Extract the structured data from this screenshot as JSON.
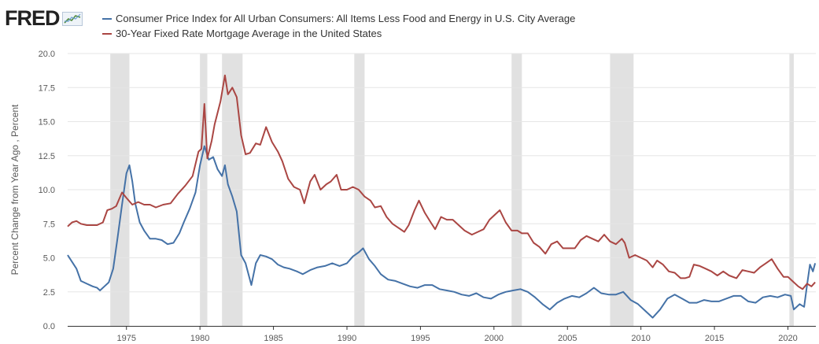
{
  "brand": {
    "logo_text": "FRED"
  },
  "colors": {
    "cpi": "#4572a7",
    "mortgage": "#aa4643",
    "recession": "#e1e1e1",
    "grid": "#e6e6e6"
  },
  "chart_data": {
    "type": "line",
    "title": "",
    "xlabel": "",
    "ylabel": "Percent Change from Year Ago , Percent",
    "xlim": [
      1971.0,
      2021.9
    ],
    "ylim": [
      0,
      20
    ],
    "grid": true,
    "legend": "top-left",
    "yticks": [
      "0.0",
      "2.5",
      "5.0",
      "7.5",
      "10.0",
      "12.5",
      "15.0",
      "17.5",
      "20.0"
    ],
    "xticks": [
      "1975",
      "1980",
      "1985",
      "1990",
      "1995",
      "2000",
      "2005",
      "2010",
      "2015",
      "2020"
    ],
    "recessions": [
      [
        1973.9,
        1975.2
      ],
      [
        1980.0,
        1980.5
      ],
      [
        1981.5,
        1982.9
      ],
      [
        1990.5,
        1991.2
      ],
      [
        2001.2,
        2001.9
      ],
      [
        2007.9,
        2009.5
      ],
      [
        2020.1,
        2020.4
      ]
    ],
    "series": [
      {
        "name": "Consumer Price Index for All Urban Consumers: All Items Less Food and Energy in U.S. City Average",
        "points": [
          [
            1971.0,
            5.2
          ],
          [
            1971.3,
            4.7
          ],
          [
            1971.6,
            4.2
          ],
          [
            1971.9,
            3.3
          ],
          [
            1972.3,
            3.1
          ],
          [
            1972.7,
            2.9
          ],
          [
            1973.0,
            2.8
          ],
          [
            1973.2,
            2.6
          ],
          [
            1973.5,
            2.9
          ],
          [
            1973.8,
            3.2
          ],
          [
            1974.1,
            4.2
          ],
          [
            1974.4,
            6.5
          ],
          [
            1974.7,
            8.9
          ],
          [
            1975.0,
            11.2
          ],
          [
            1975.2,
            11.8
          ],
          [
            1975.4,
            10.6
          ],
          [
            1975.6,
            9.0
          ],
          [
            1975.9,
            7.6
          ],
          [
            1976.2,
            7.0
          ],
          [
            1976.6,
            6.4
          ],
          [
            1977.0,
            6.4
          ],
          [
            1977.4,
            6.3
          ],
          [
            1977.8,
            6.0
          ],
          [
            1978.2,
            6.1
          ],
          [
            1978.6,
            6.8
          ],
          [
            1978.9,
            7.6
          ],
          [
            1979.3,
            8.6
          ],
          [
            1979.7,
            9.8
          ],
          [
            1980.0,
            11.8
          ],
          [
            1980.3,
            13.2
          ],
          [
            1980.6,
            12.2
          ],
          [
            1980.9,
            12.4
          ],
          [
            1981.2,
            11.5
          ],
          [
            1981.5,
            11.0
          ],
          [
            1981.7,
            11.8
          ],
          [
            1981.9,
            10.4
          ],
          [
            1982.2,
            9.5
          ],
          [
            1982.5,
            8.4
          ],
          [
            1982.8,
            5.2
          ],
          [
            1983.1,
            4.6
          ],
          [
            1983.5,
            3.0
          ],
          [
            1983.8,
            4.6
          ],
          [
            1984.1,
            5.2
          ],
          [
            1984.5,
            5.1
          ],
          [
            1984.9,
            4.9
          ],
          [
            1985.3,
            4.5
          ],
          [
            1985.7,
            4.3
          ],
          [
            1986.1,
            4.2
          ],
          [
            1986.6,
            4.0
          ],
          [
            1987.0,
            3.8
          ],
          [
            1987.5,
            4.1
          ],
          [
            1988.0,
            4.3
          ],
          [
            1988.5,
            4.4
          ],
          [
            1989.0,
            4.6
          ],
          [
            1989.5,
            4.4
          ],
          [
            1990.0,
            4.6
          ],
          [
            1990.4,
            5.1
          ],
          [
            1990.8,
            5.4
          ],
          [
            1991.1,
            5.7
          ],
          [
            1991.5,
            4.9
          ],
          [
            1991.9,
            4.4
          ],
          [
            1992.3,
            3.8
          ],
          [
            1992.8,
            3.4
          ],
          [
            1993.3,
            3.3
          ],
          [
            1993.8,
            3.1
          ],
          [
            1994.3,
            2.9
          ],
          [
            1994.8,
            2.8
          ],
          [
            1995.3,
            3.0
          ],
          [
            1995.8,
            3.0
          ],
          [
            1996.3,
            2.7
          ],
          [
            1996.8,
            2.6
          ],
          [
            1997.3,
            2.5
          ],
          [
            1997.8,
            2.3
          ],
          [
            1998.3,
            2.2
          ],
          [
            1998.8,
            2.4
          ],
          [
            1999.3,
            2.1
          ],
          [
            1999.8,
            2.0
          ],
          [
            2000.3,
            2.3
          ],
          [
            2000.8,
            2.5
          ],
          [
            2001.3,
            2.6
          ],
          [
            2001.8,
            2.7
          ],
          [
            2002.3,
            2.5
          ],
          [
            2002.8,
            2.1
          ],
          [
            2003.3,
            1.6
          ],
          [
            2003.8,
            1.2
          ],
          [
            2004.3,
            1.7
          ],
          [
            2004.8,
            2.0
          ],
          [
            2005.3,
            2.2
          ],
          [
            2005.8,
            2.1
          ],
          [
            2006.3,
            2.4
          ],
          [
            2006.8,
            2.8
          ],
          [
            2007.3,
            2.4
          ],
          [
            2007.8,
            2.3
          ],
          [
            2008.3,
            2.3
          ],
          [
            2008.8,
            2.5
          ],
          [
            2009.3,
            1.9
          ],
          [
            2009.8,
            1.6
          ],
          [
            2010.3,
            1.1
          ],
          [
            2010.8,
            0.6
          ],
          [
            2011.3,
            1.2
          ],
          [
            2011.8,
            2.0
          ],
          [
            2012.3,
            2.3
          ],
          [
            2012.8,
            2.0
          ],
          [
            2013.3,
            1.7
          ],
          [
            2013.8,
            1.7
          ],
          [
            2014.3,
            1.9
          ],
          [
            2014.8,
            1.8
          ],
          [
            2015.3,
            1.8
          ],
          [
            2015.8,
            2.0
          ],
          [
            2016.3,
            2.2
          ],
          [
            2016.8,
            2.2
          ],
          [
            2017.3,
            1.8
          ],
          [
            2017.8,
            1.7
          ],
          [
            2018.3,
            2.1
          ],
          [
            2018.8,
            2.2
          ],
          [
            2019.3,
            2.1
          ],
          [
            2019.8,
            2.3
          ],
          [
            2020.2,
            2.2
          ],
          [
            2020.4,
            1.2
          ],
          [
            2020.8,
            1.6
          ],
          [
            2021.1,
            1.4
          ],
          [
            2021.3,
            3.0
          ],
          [
            2021.5,
            4.5
          ],
          [
            2021.7,
            4.0
          ],
          [
            2021.85,
            4.6
          ]
        ]
      },
      {
        "name": "30-Year Fixed Rate Mortgage Average in the United States",
        "points": [
          [
            1971.0,
            7.3
          ],
          [
            1971.3,
            7.6
          ],
          [
            1971.6,
            7.7
          ],
          [
            1971.9,
            7.5
          ],
          [
            1972.3,
            7.4
          ],
          [
            1972.7,
            7.4
          ],
          [
            1973.0,
            7.4
          ],
          [
            1973.4,
            7.6
          ],
          [
            1973.7,
            8.5
          ],
          [
            1974.0,
            8.6
          ],
          [
            1974.3,
            8.8
          ],
          [
            1974.7,
            9.8
          ],
          [
            1975.0,
            9.4
          ],
          [
            1975.4,
            8.9
          ],
          [
            1975.8,
            9.1
          ],
          [
            1976.2,
            8.9
          ],
          [
            1976.6,
            8.9
          ],
          [
            1977.0,
            8.7
          ],
          [
            1977.5,
            8.9
          ],
          [
            1978.0,
            9.0
          ],
          [
            1978.5,
            9.7
          ],
          [
            1979.0,
            10.3
          ],
          [
            1979.5,
            11.0
          ],
          [
            1979.9,
            12.8
          ],
          [
            1980.1,
            13.0
          ],
          [
            1980.3,
            16.3
          ],
          [
            1980.5,
            12.3
          ],
          [
            1980.8,
            13.6
          ],
          [
            1981.0,
            14.8
          ],
          [
            1981.4,
            16.5
          ],
          [
            1981.7,
            18.4
          ],
          [
            1981.9,
            17.0
          ],
          [
            1982.2,
            17.5
          ],
          [
            1982.5,
            16.8
          ],
          [
            1982.8,
            14.0
          ],
          [
            1983.1,
            12.6
          ],
          [
            1983.4,
            12.7
          ],
          [
            1983.8,
            13.4
          ],
          [
            1984.1,
            13.3
          ],
          [
            1984.5,
            14.6
          ],
          [
            1984.9,
            13.5
          ],
          [
            1985.3,
            12.8
          ],
          [
            1985.6,
            12.1
          ],
          [
            1986.0,
            10.8
          ],
          [
            1986.4,
            10.2
          ],
          [
            1986.8,
            10.0
          ],
          [
            1987.1,
            9.0
          ],
          [
            1987.5,
            10.6
          ],
          [
            1987.8,
            11.1
          ],
          [
            1988.2,
            10.0
          ],
          [
            1988.6,
            10.4
          ],
          [
            1988.9,
            10.6
          ],
          [
            1989.3,
            11.1
          ],
          [
            1989.6,
            10.0
          ],
          [
            1990.0,
            10.0
          ],
          [
            1990.4,
            10.2
          ],
          [
            1990.8,
            10.0
          ],
          [
            1991.2,
            9.5
          ],
          [
            1991.6,
            9.2
          ],
          [
            1991.9,
            8.7
          ],
          [
            1992.3,
            8.8
          ],
          [
            1992.7,
            8.0
          ],
          [
            1993.1,
            7.5
          ],
          [
            1993.5,
            7.2
          ],
          [
            1993.9,
            6.9
          ],
          [
            1994.2,
            7.4
          ],
          [
            1994.6,
            8.5
          ],
          [
            1994.9,
            9.2
          ],
          [
            1995.3,
            8.3
          ],
          [
            1995.7,
            7.6
          ],
          [
            1996.0,
            7.1
          ],
          [
            1996.4,
            8.0
          ],
          [
            1996.8,
            7.8
          ],
          [
            1997.2,
            7.8
          ],
          [
            1997.6,
            7.4
          ],
          [
            1998.0,
            7.0
          ],
          [
            1998.5,
            6.7
          ],
          [
            1998.9,
            6.9
          ],
          [
            1999.3,
            7.1
          ],
          [
            1999.7,
            7.8
          ],
          [
            2000.1,
            8.2
          ],
          [
            2000.4,
            8.5
          ],
          [
            2000.8,
            7.6
          ],
          [
            2001.2,
            7.0
          ],
          [
            2001.6,
            7.0
          ],
          [
            2001.9,
            6.8
          ],
          [
            2002.3,
            6.8
          ],
          [
            2002.7,
            6.1
          ],
          [
            2003.1,
            5.8
          ],
          [
            2003.5,
            5.3
          ],
          [
            2003.9,
            6.0
          ],
          [
            2004.3,
            6.2
          ],
          [
            2004.7,
            5.7
          ],
          [
            2005.1,
            5.7
          ],
          [
            2005.5,
            5.7
          ],
          [
            2005.9,
            6.3
          ],
          [
            2006.3,
            6.6
          ],
          [
            2006.7,
            6.4
          ],
          [
            2007.1,
            6.2
          ],
          [
            2007.5,
            6.7
          ],
          [
            2007.9,
            6.2
          ],
          [
            2008.3,
            6.0
          ],
          [
            2008.7,
            6.4
          ],
          [
            2008.9,
            6.1
          ],
          [
            2009.2,
            5.0
          ],
          [
            2009.6,
            5.2
          ],
          [
            2010.0,
            5.0
          ],
          [
            2010.4,
            4.8
          ],
          [
            2010.8,
            4.3
          ],
          [
            2011.1,
            4.8
          ],
          [
            2011.5,
            4.5
          ],
          [
            2011.9,
            4.0
          ],
          [
            2012.3,
            3.9
          ],
          [
            2012.7,
            3.5
          ],
          [
            2013.0,
            3.5
          ],
          [
            2013.3,
            3.6
          ],
          [
            2013.6,
            4.5
          ],
          [
            2014.0,
            4.4
          ],
          [
            2014.4,
            4.2
          ],
          [
            2014.8,
            4.0
          ],
          [
            2015.2,
            3.7
          ],
          [
            2015.6,
            4.0
          ],
          [
            2016.0,
            3.7
          ],
          [
            2016.5,
            3.5
          ],
          [
            2016.9,
            4.1
          ],
          [
            2017.3,
            4.0
          ],
          [
            2017.7,
            3.9
          ],
          [
            2018.1,
            4.3
          ],
          [
            2018.5,
            4.6
          ],
          [
            2018.9,
            4.9
          ],
          [
            2019.3,
            4.2
          ],
          [
            2019.7,
            3.6
          ],
          [
            2020.0,
            3.6
          ],
          [
            2020.3,
            3.3
          ],
          [
            2020.7,
            2.9
          ],
          [
            2021.0,
            2.7
          ],
          [
            2021.3,
            3.1
          ],
          [
            2021.6,
            2.9
          ],
          [
            2021.85,
            3.2
          ]
        ]
      }
    ]
  }
}
